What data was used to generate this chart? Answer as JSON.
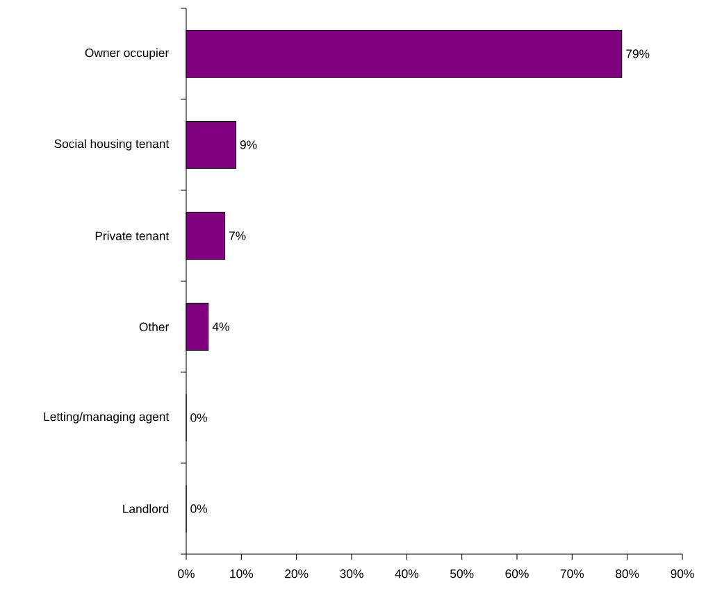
{
  "chart_data": {
    "type": "bar",
    "orientation": "horizontal",
    "categories": [
      "Owner occupier",
      "Social housing tenant",
      "Private tenant",
      "Other",
      "Letting/managing agent",
      "Landlord"
    ],
    "values": [
      79,
      9,
      7,
      4,
      0,
      0
    ],
    "value_labels": [
      "79%",
      "9%",
      "7%",
      "4%",
      "0%",
      "0%"
    ],
    "color": "#800080",
    "xlim": [
      0,
      90
    ],
    "xticks": [
      {
        "value": 0,
        "label": "0%"
      },
      {
        "value": 10,
        "label": "10%"
      },
      {
        "value": 20,
        "label": "20%"
      },
      {
        "value": 30,
        "label": "30%"
      },
      {
        "value": 40,
        "label": "40%"
      },
      {
        "value": 50,
        "label": "50%"
      },
      {
        "value": 60,
        "label": "60%"
      },
      {
        "value": 70,
        "label": "70%"
      },
      {
        "value": 80,
        "label": "80%"
      },
      {
        "value": 90,
        "label": "90%"
      }
    ],
    "grid": false
  }
}
